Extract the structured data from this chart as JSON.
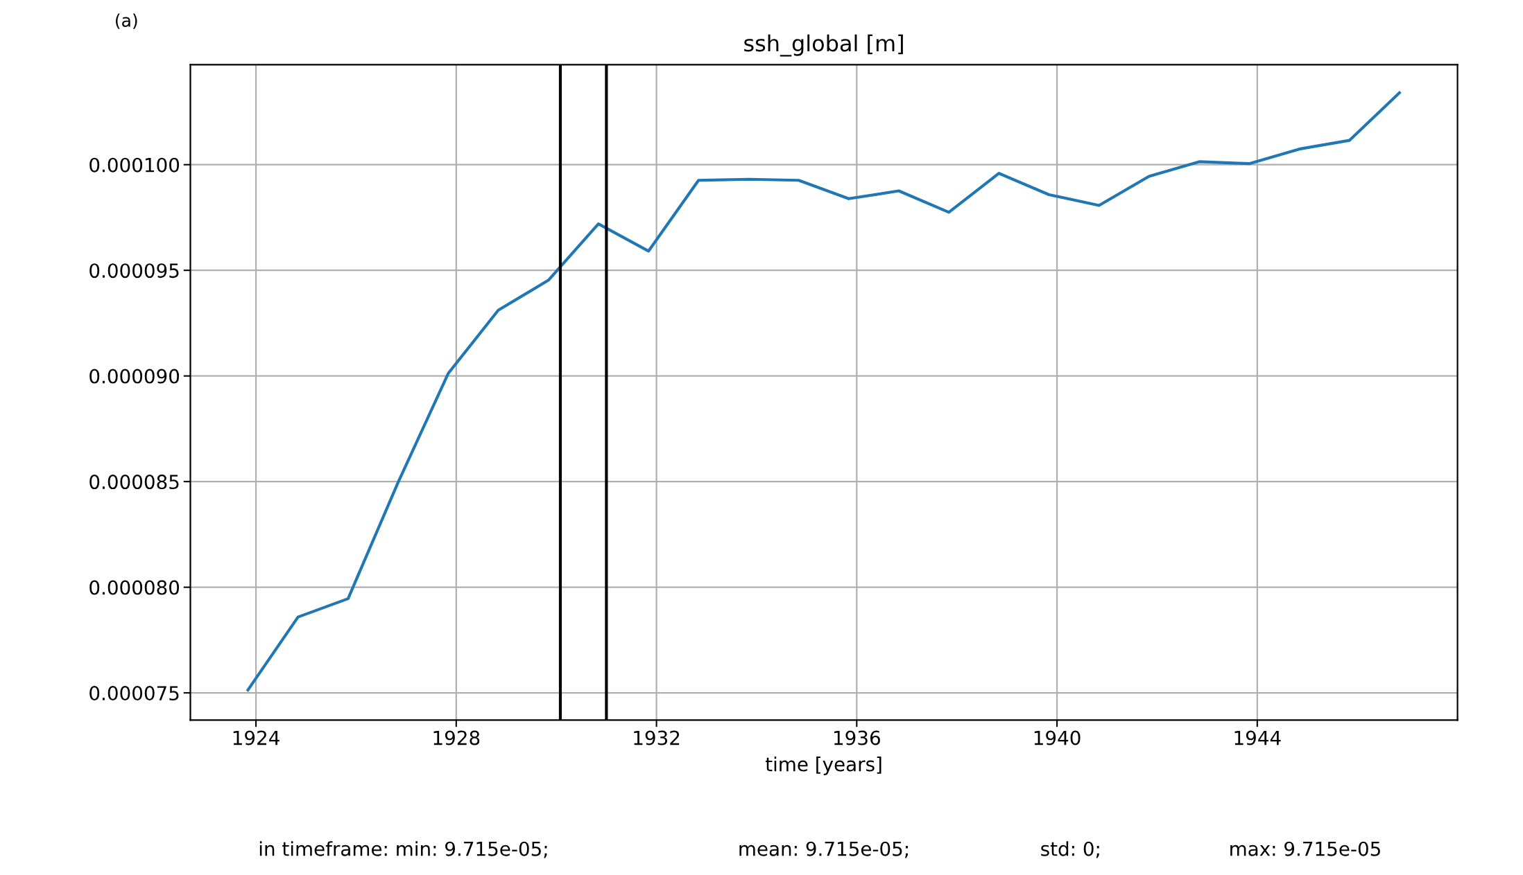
{
  "chart_data": {
    "type": "line",
    "title": "ssh_global [m]",
    "xlabel": "time [years]",
    "x": [
      1923.84,
      1924.84,
      1925.84,
      1926.84,
      1927.84,
      1928.84,
      1929.84,
      1930.84,
      1931.84,
      1932.84,
      1933.84,
      1934.84,
      1935.84,
      1936.84,
      1937.84,
      1938.84,
      1939.84,
      1940.84,
      1941.84,
      1942.84,
      1943.84,
      1944.84,
      1945.84,
      1946.84
    ],
    "series": [
      {
        "color": "#1f77b4",
        "values": [
          7.514e-05,
          7.859e-05,
          7.946e-05,
          8.497e-05,
          9.012e-05,
          9.311e-05,
          9.453e-05,
          9.72e-05,
          9.591e-05,
          9.926e-05,
          9.931e-05,
          9.926e-05,
          9.839e-05,
          9.876e-05,
          9.775e-05,
          9.959e-05,
          9.858e-05,
          9.807e-05,
          9.945e-05,
          0.00010014,
          0.00010005,
          0.00010074,
          0.00010115,
          0.0001034
        ]
      }
    ],
    "xlim": [
      1922.69,
      1948.0
    ],
    "xticks": [
      1924,
      1928,
      1932,
      1936,
      1940,
      1944
    ],
    "ylim": [
      7.371e-05,
      0.00010473
    ],
    "yticks": [
      {
        "value": 7.5e-05,
        "label": "0.000075"
      },
      {
        "value": 8e-05,
        "label": "0.000080"
      },
      {
        "value": 8.5e-05,
        "label": "0.000085"
      },
      {
        "value": 9e-05,
        "label": "0.000090"
      },
      {
        "value": 9.5e-05,
        "label": "0.000095"
      },
      {
        "value": 0.0001,
        "label": "0.000100"
      }
    ],
    "ref_lines": [
      {
        "axis": "x",
        "value": 1930.08,
        "color": "#000000"
      },
      {
        "axis": "x",
        "value": 1931.0,
        "color": "#000000"
      }
    ],
    "grid": true,
    "legend": false,
    "marker": "none",
    "line_style": "solid",
    "annotations": [
      "(a)",
      "in timeframe: min: 9.715e-05;",
      "mean: 9.715e-05;",
      "std: 0;",
      "max: 9.715e-05"
    ]
  }
}
